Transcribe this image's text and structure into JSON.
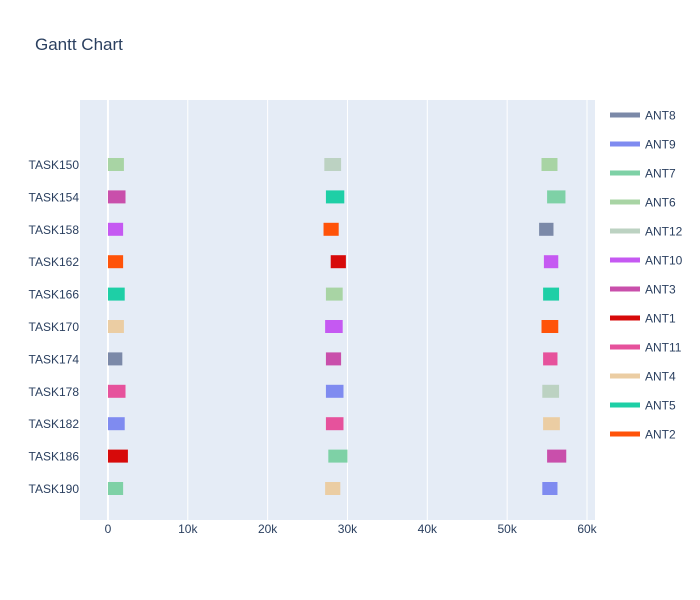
{
  "chart_data": {
    "type": "gantt",
    "title": "Gantt Chart",
    "xlabel": "",
    "ylabel": "",
    "xlim": [
      -3500,
      61000
    ],
    "x_ticks": [
      0,
      10000,
      20000,
      30000,
      40000,
      50000,
      60000
    ],
    "x_tick_labels": [
      "0",
      "10k",
      "20k",
      "30k",
      "40k",
      "50k",
      "60k"
    ],
    "grid": true,
    "legend_position": "right",
    "tasks": [
      "TASK150",
      "TASK154",
      "TASK158",
      "TASK162",
      "TASK166",
      "TASK170",
      "TASK174",
      "TASK178",
      "TASK182",
      "TASK186",
      "TASK190"
    ],
    "series": [
      {
        "name": "ANT8",
        "color": "#7b89a8",
        "bars": [
          {
            "task": "TASK174",
            "start": 0,
            "end": 1800
          },
          {
            "task": "TASK158",
            "start": 54000,
            "end": 55800
          }
        ]
      },
      {
        "name": "ANT9",
        "color": "#7f8bf0",
        "bars": [
          {
            "task": "TASK182",
            "start": 0,
            "end": 2100
          },
          {
            "task": "TASK178",
            "start": 27300,
            "end": 29500
          },
          {
            "task": "TASK190",
            "start": 54400,
            "end": 56300
          }
        ]
      },
      {
        "name": "ANT7",
        "color": "#7ed1a6",
        "bars": [
          {
            "task": "TASK190",
            "start": 0,
            "end": 1900
          },
          {
            "task": "TASK186",
            "start": 27600,
            "end": 30000
          },
          {
            "task": "TASK154",
            "start": 55000,
            "end": 57300
          }
        ]
      },
      {
        "name": "ANT6",
        "color": "#a8d4a4",
        "bars": [
          {
            "task": "TASK150",
            "start": 0,
            "end": 2000
          },
          {
            "task": "TASK166",
            "start": 27300,
            "end": 29400
          },
          {
            "task": "TASK150",
            "start": 54300,
            "end": 56300
          }
        ]
      },
      {
        "name": "ANT12",
        "color": "#bcd2c2",
        "bars": [
          {
            "task": "TASK150",
            "start": 27100,
            "end": 29200
          },
          {
            "task": "TASK178",
            "start": 54400,
            "end": 56500
          }
        ]
      },
      {
        "name": "ANT10",
        "color": "#c559f2",
        "bars": [
          {
            "task": "TASK158",
            "start": 0,
            "end": 1900
          },
          {
            "task": "TASK170",
            "start": 27200,
            "end": 29400
          },
          {
            "task": "TASK162",
            "start": 54600,
            "end": 56400
          }
        ]
      },
      {
        "name": "ANT3",
        "color": "#c94fab",
        "bars": [
          {
            "task": "TASK154",
            "start": 0,
            "end": 2200
          },
          {
            "task": "TASK174",
            "start": 27300,
            "end": 29200
          },
          {
            "task": "TASK186",
            "start": 55000,
            "end": 57400
          }
        ]
      },
      {
        "name": "ANT1",
        "color": "#d70a0a",
        "bars": [
          {
            "task": "TASK186",
            "start": 0,
            "end": 2500
          },
          {
            "task": "TASK162",
            "start": 27900,
            "end": 29800
          }
        ]
      },
      {
        "name": "ANT11",
        "color": "#e6529c",
        "bars": [
          {
            "task": "TASK178",
            "start": 0,
            "end": 2200
          },
          {
            "task": "TASK182",
            "start": 27300,
            "end": 29500
          },
          {
            "task": "TASK174",
            "start": 54500,
            "end": 56300
          }
        ]
      },
      {
        "name": "ANT4",
        "color": "#ebcda3",
        "bars": [
          {
            "task": "TASK170",
            "start": 0,
            "end": 2000
          },
          {
            "task": "TASK190",
            "start": 27200,
            "end": 29100
          },
          {
            "task": "TASK182",
            "start": 54500,
            "end": 56600
          }
        ]
      },
      {
        "name": "ANT5",
        "color": "#1ecfa6",
        "bars": [
          {
            "task": "TASK166",
            "start": 0,
            "end": 2100
          },
          {
            "task": "TASK154",
            "start": 27300,
            "end": 29600
          },
          {
            "task": "TASK166",
            "start": 54500,
            "end": 56500
          }
        ]
      },
      {
        "name": "ANT2",
        "color": "#ff5309",
        "bars": [
          {
            "task": "TASK162",
            "start": 0,
            "end": 1900
          },
          {
            "task": "TASK158",
            "start": 27000,
            "end": 28900
          },
          {
            "task": "TASK170",
            "start": 54300,
            "end": 56400
          }
        ]
      }
    ]
  },
  "colors": {
    "plot_background": "#e5ecf6",
    "grid": "#ffffff",
    "text": "#2a3f5f"
  }
}
